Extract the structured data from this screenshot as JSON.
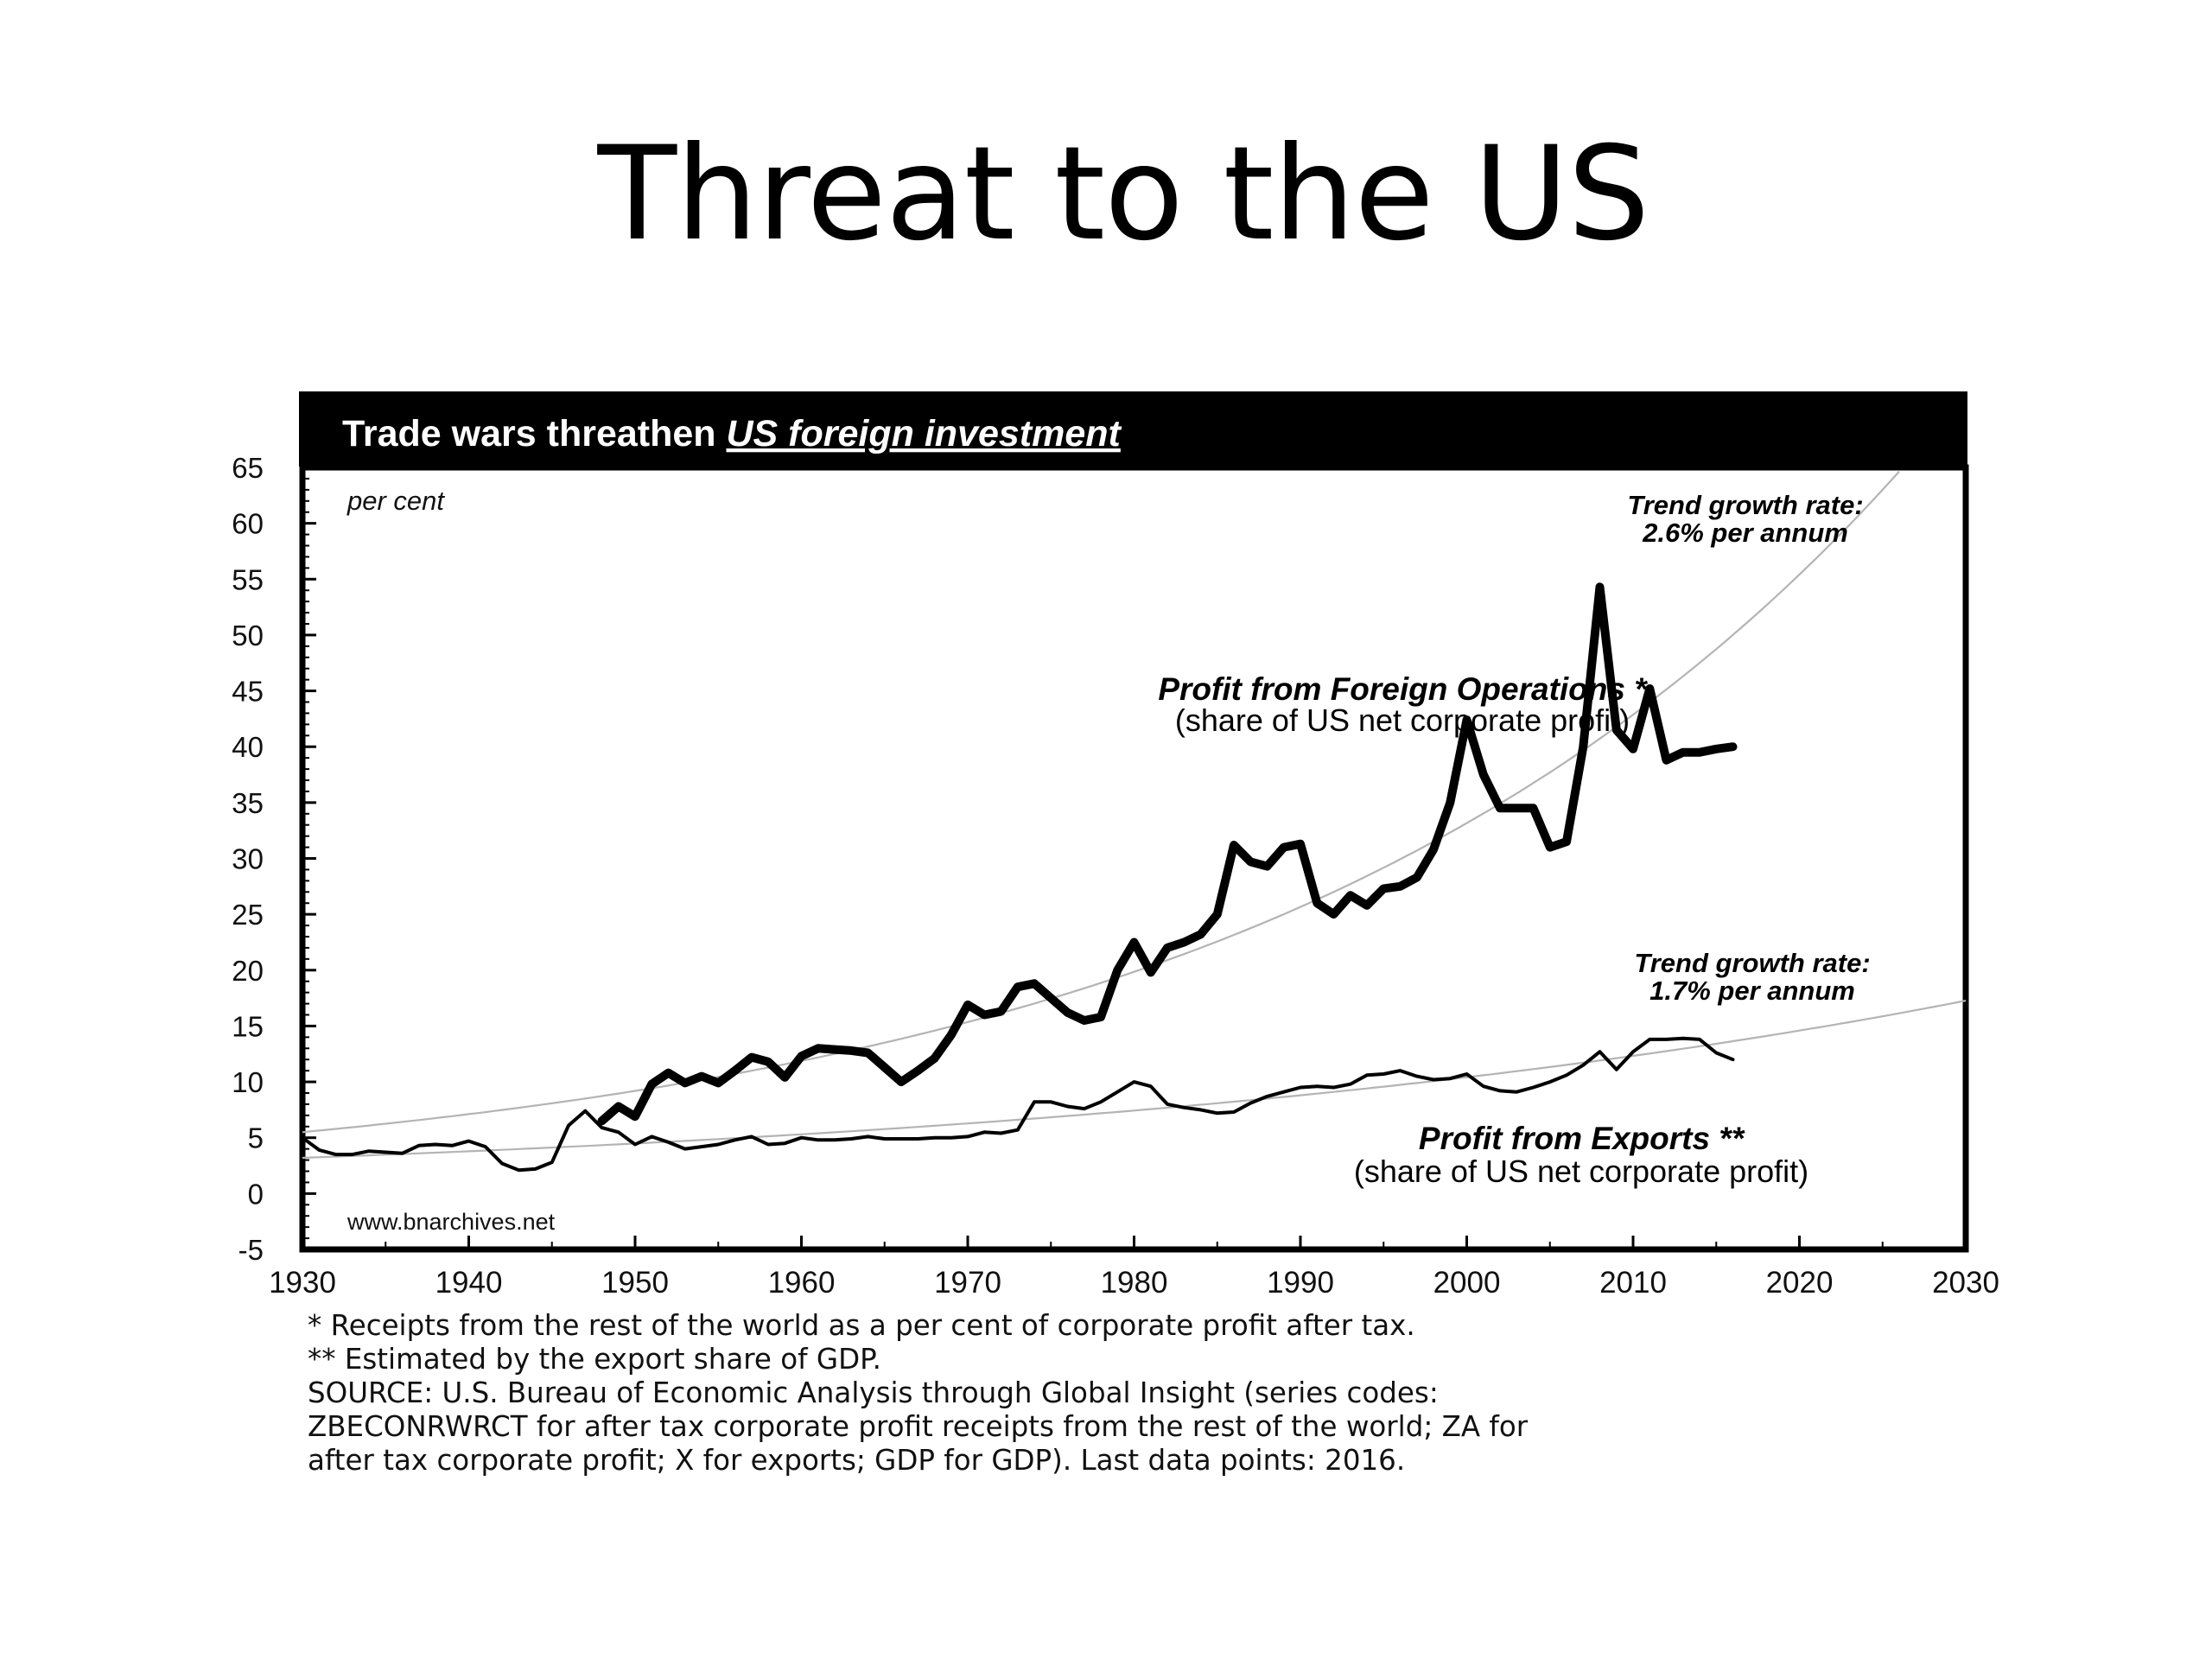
{
  "slide": {
    "title": "Threat to the US"
  },
  "chart_data": {
    "type": "line",
    "title": "Trade wars threathen",
    "title_emphasis": "US foreign investment",
    "unit_label": "per cent",
    "xlim": [
      1930,
      2030
    ],
    "ylim": [
      -5,
      65
    ],
    "x_ticks": [
      1930,
      1940,
      1950,
      1960,
      1970,
      1980,
      1990,
      2000,
      2010,
      2020,
      2030
    ],
    "y_ticks": [
      65,
      60,
      55,
      50,
      45,
      40,
      35,
      30,
      25,
      20,
      15,
      10,
      5,
      0,
      -5
    ],
    "grid": false,
    "watermark": "www.bnarchives.net",
    "series": [
      {
        "name": "Profit from Foreign Operations *",
        "subtitle": "(share of US net corporate profit)",
        "style": "thick",
        "x": [
          1948,
          1949,
          1950,
          1951,
          1952,
          1953,
          1954,
          1955,
          1956,
          1957,
          1958,
          1959,
          1960,
          1961,
          1962,
          1963,
          1964,
          1965,
          1966,
          1967,
          1968,
          1969,
          1970,
          1971,
          1972,
          1973,
          1974,
          1975,
          1976,
          1977,
          1978,
          1979,
          1980,
          1981,
          1982,
          1983,
          1984,
          1985,
          1986,
          1987,
          1988,
          1989,
          1990,
          1991,
          1992,
          1993,
          1994,
          1995,
          1996,
          1997,
          1998,
          1999,
          2000,
          2001,
          2002,
          2003,
          2004,
          2005,
          2006,
          2007,
          2008,
          2009,
          2010,
          2011,
          2012,
          2013,
          2014,
          2015,
          2016
        ],
        "y": [
          6.5,
          7.8,
          6.9,
          9.8,
          10.8,
          9.9,
          10.5,
          9.9,
          11,
          12.2,
          11.8,
          10.4,
          12.3,
          13,
          12.9,
          12.8,
          12.6,
          11.3,
          10,
          11,
          12.1,
          14.2,
          16.9,
          16,
          16.3,
          18.5,
          18.8,
          17.5,
          16.2,
          15.5,
          15.8,
          20,
          22.5,
          19.8,
          22,
          22.5,
          23.2,
          25,
          31.2,
          29.7,
          29.3,
          31,
          31.3,
          26,
          25,
          26.7,
          25.8,
          27.3,
          27.5,
          28.3,
          30.8,
          35,
          42.4,
          37.5,
          34.5,
          34.5,
          34.5,
          31,
          31.5,
          40,
          54.3,
          41.5,
          39.8,
          45.2,
          38.8,
          39.5,
          39.5,
          39.8,
          40
        ]
      },
      {
        "name": "Profit from Exports **",
        "subtitle": "(share of US net corporate profit)",
        "style": "thin",
        "x": [
          1930,
          1931,
          1932,
          1933,
          1934,
          1935,
          1936,
          1937,
          1938,
          1939,
          1940,
          1941,
          1942,
          1943,
          1944,
          1945,
          1946,
          1947,
          1948,
          1949,
          1950,
          1951,
          1952,
          1953,
          1954,
          1955,
          1956,
          1957,
          1958,
          1959,
          1960,
          1961,
          1962,
          1963,
          1964,
          1965,
          1966,
          1967,
          1968,
          1969,
          1970,
          1971,
          1972,
          1973,
          1974,
          1975,
          1976,
          1977,
          1978,
          1979,
          1980,
          1981,
          1982,
          1983,
          1984,
          1985,
          1986,
          1987,
          1988,
          1989,
          1990,
          1991,
          1992,
          1993,
          1994,
          1995,
          1996,
          1997,
          1998,
          1999,
          2000,
          2001,
          2002,
          2003,
          2004,
          2005,
          2006,
          2007,
          2008,
          2009,
          2010,
          2011,
          2012,
          2013,
          2014,
          2015,
          2016
        ],
        "y": [
          5,
          3.9,
          3.5,
          3.5,
          3.8,
          3.7,
          3.6,
          4.3,
          4.4,
          4.3,
          4.7,
          4.2,
          2.7,
          2.1,
          2.2,
          2.8,
          6.1,
          7.4,
          5.9,
          5.5,
          4.4,
          5.1,
          4.6,
          4,
          4.2,
          4.4,
          4.8,
          5.1,
          4.4,
          4.5,
          5,
          4.8,
          4.8,
          4.9,
          5.1,
          4.9,
          4.9,
          4.9,
          5,
          5,
          5.1,
          5.5,
          5.4,
          5.7,
          8.2,
          8.2,
          7.8,
          7.6,
          8.2,
          9.1,
          10,
          9.6,
          8,
          7.7,
          7.5,
          7.2,
          7.3,
          8.1,
          8.7,
          9.1,
          9.5,
          9.6,
          9.5,
          9.8,
          10.6,
          10.7,
          11,
          10.5,
          10.2,
          10.3,
          10.7,
          9.6,
          9.2,
          9.1,
          9.5,
          10,
          10.6,
          11.5,
          12.7,
          11.1,
          12.7,
          13.8,
          13.8,
          13.9,
          13.8,
          12.6,
          12
        ]
      }
    ],
    "trend_lines": [
      {
        "label_line1": "Trend growth rate:",
        "label_line2": "2.6% per annum",
        "rate": 0.026,
        "base_year": 1930,
        "base_value": 5.5
      },
      {
        "label_line1": "Trend growth rate:",
        "label_line2": "1.7% per annum",
        "rate": 0.017,
        "base_year": 1930,
        "base_value": 3.2
      }
    ],
    "colors": {
      "frame": "#000000",
      "header_bg": "#000000",
      "header_text": "#ffffff",
      "trend": "#b4b4b4",
      "series": "#000000"
    }
  },
  "footnotes": [
    "* Receipts from the rest of the world as a per cent of corporate profit after tax.",
    "** Estimated by the export share of GDP.",
    "SOURCE: U.S. Bureau of Economic Analysis through Global Insight (series codes:",
    "ZBECONRWRCT for after tax corporate profit receipts from the rest of the world; ZA for",
    "after tax corporate profit; X for exports; GDP for GDP). Last data points: 2016."
  ]
}
